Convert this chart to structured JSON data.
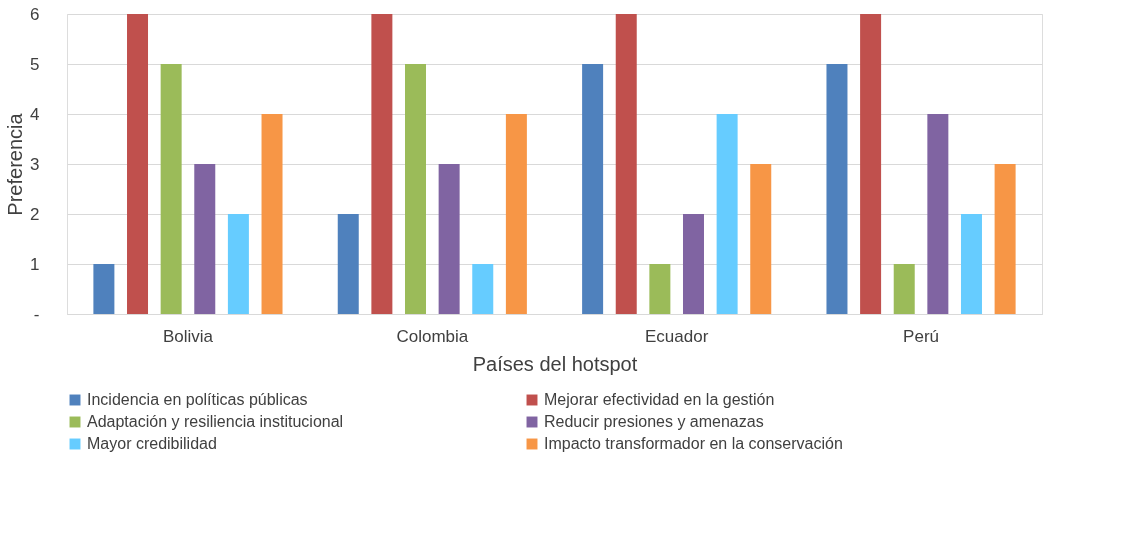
{
  "chart_data": {
    "type": "bar",
    "xlabel": "Países del hotspot",
    "ylabel": "Preferencia",
    "categories": [
      "Bolivia",
      "Colombia",
      "Ecuador",
      "Perú"
    ],
    "series": [
      {
        "name": "Incidencia en políticas públicas",
        "color": "#4f81bd",
        "values": [
          1,
          2,
          5,
          5
        ]
      },
      {
        "name": "Mejorar efectividad en la gestión",
        "color": "#c0504d",
        "values": [
          6,
          6,
          6,
          6
        ]
      },
      {
        "name": "Adaptación y resiliencia institucional",
        "color": "#9bbb59",
        "values": [
          5,
          5,
          1,
          1
        ]
      },
      {
        "name": "Reducir presiones y amenazas",
        "color": "#8064a2",
        "values": [
          3,
          3,
          2,
          4
        ]
      },
      {
        "name": "Mayor credibilidad",
        "color": "#66ccff",
        "values": [
          2,
          1,
          4,
          2
        ]
      },
      {
        "name": "Impacto transformador en la conservación",
        "color": "#f79646",
        "values": [
          4,
          4,
          3,
          3
        ]
      }
    ],
    "ylim": [
      0,
      6
    ],
    "yticks": [
      {
        "value": 0,
        "label": "-"
      },
      1,
      2,
      3,
      4,
      5,
      6
    ],
    "grid": "y",
    "legend": "bottom"
  }
}
